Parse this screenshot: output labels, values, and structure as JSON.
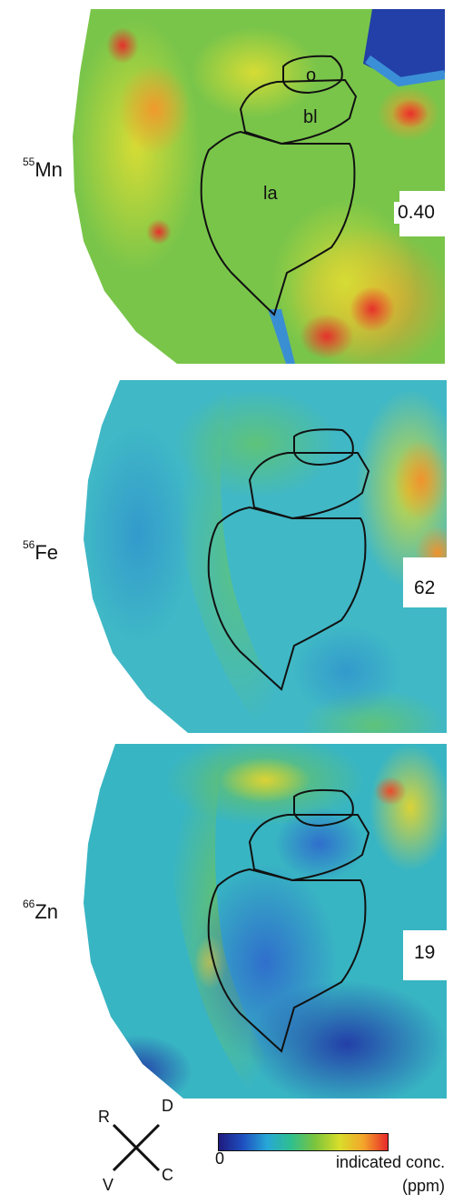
{
  "panels": [
    {
      "element_sup": "55",
      "element": "Mn",
      "max_value": "0.40",
      "regions": {
        "o": "o",
        "bl": "bl",
        "la": "la"
      }
    },
    {
      "element_sup": "56",
      "element": "Fe",
      "max_value": "62"
    },
    {
      "element_sup": "66",
      "element": "Zn",
      "max_value": "19"
    }
  ],
  "compass": {
    "up_left": "R",
    "up_right": "D",
    "down_left": "V",
    "down_right": "C"
  },
  "colorbar": {
    "min_label": "0",
    "max_label_line1": "indicated conc.",
    "max_label_line2": "(ppm)",
    "colors": [
      "#1e1a7e",
      "#1e4fc0",
      "#27a7d6",
      "#2fbf8e",
      "#7cc43c",
      "#d8dd2a",
      "#f3a52a",
      "#e8282b"
    ]
  },
  "map_colors": {
    "Mn": {
      "base": "#78c44a",
      "mid": "#c4d93a",
      "hot": "#f09a2c",
      "peak": "#e6312b",
      "cold": "#2f63c6"
    },
    "Fe": {
      "base": "#3fb9c6",
      "mid": "#5cc17a",
      "hot": "#cfd93a",
      "peak": "#f0932c",
      "cold": "#2a8fd3"
    },
    "Zn": {
      "base": "#37b4c2",
      "mid": "#6cc35c",
      "hot": "#dad338",
      "peak": "#ea4b2a",
      "cold": "#233fa8"
    }
  }
}
